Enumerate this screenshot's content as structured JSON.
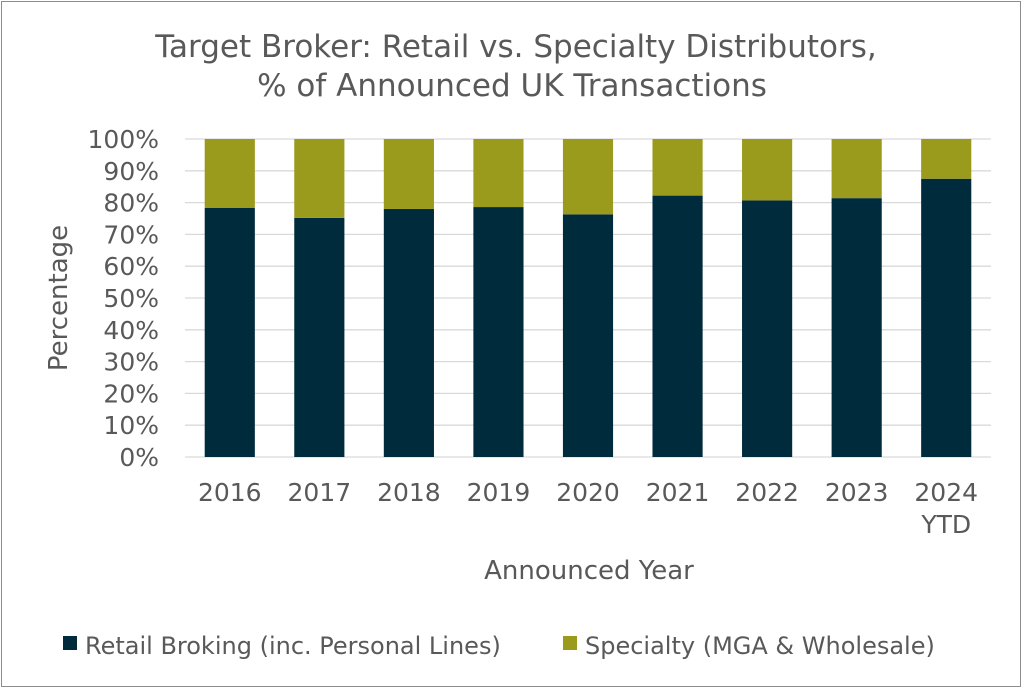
{
  "chart_data": {
    "type": "bar",
    "stacked": true,
    "title": "Target Broker: Retail vs. Specialty Distributors,",
    "subtitle": "% of Announced UK Transactions",
    "xlabel": "Announced Year",
    "ylabel": "Percentage",
    "ylim": [
      0,
      100
    ],
    "yticks": [
      "0%",
      "10%",
      "20%",
      "30%",
      "40%",
      "50%",
      "60%",
      "70%",
      "80%",
      "90%",
      "100%"
    ],
    "grid": true,
    "legend": "bottom",
    "categories": [
      "2016",
      "2017",
      "2018",
      "2019",
      "2020",
      "2021",
      "2022",
      "2023",
      "2024 YTD"
    ],
    "series": [
      {
        "name": "Retail Broking (inc. Personal Lines)",
        "color": "#002b3d",
        "values": [
          78.3,
          75.2,
          78.0,
          78.6,
          76.3,
          82.2,
          80.7,
          81.4,
          87.5
        ]
      },
      {
        "name": "Specialty (MGA & Wholesale)",
        "color": "#9a9a1c",
        "values": [
          21.7,
          24.8,
          22.0,
          21.4,
          23.7,
          17.8,
          19.3,
          18.6,
          12.5
        ]
      }
    ]
  }
}
